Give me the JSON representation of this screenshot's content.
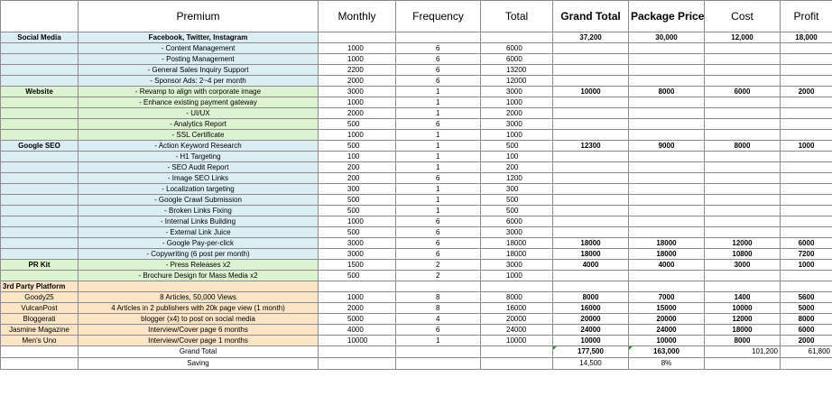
{
  "headers": [
    "",
    "Premium",
    "Monthly",
    "Frequency",
    "Total",
    "Grand Total",
    "Package Price",
    "Cost",
    "Profit"
  ],
  "rows": [
    {
      "cat": "Social Media",
      "item": "Facebook, Twitter, Instagram",
      "monthly": "",
      "freq": "",
      "total": "",
      "grand": "37,200",
      "pkg": "30,000",
      "cost": "12,000",
      "profit": "18,000",
      "color": "blue",
      "boldItem": true
    },
    {
      "cat": "",
      "item": "- Content Management",
      "monthly": "1000",
      "freq": "6",
      "total": "6000",
      "grand": "",
      "pkg": "",
      "cost": "",
      "profit": "",
      "color": "blue"
    },
    {
      "cat": "",
      "item": "- Posting Management",
      "monthly": "1000",
      "freq": "6",
      "total": "6000",
      "grand": "",
      "pkg": "",
      "cost": "",
      "profit": "",
      "color": "blue"
    },
    {
      "cat": "",
      "item": "- General Sales Inquiry Support",
      "monthly": "2200",
      "freq": "6",
      "total": "13200",
      "grand": "",
      "pkg": "",
      "cost": "",
      "profit": "",
      "color": "blue"
    },
    {
      "cat": "",
      "item": "- Sponsor Ads: 2~4 per month",
      "monthly": "2000",
      "freq": "6",
      "total": "12000",
      "grand": "",
      "pkg": "",
      "cost": "",
      "profit": "",
      "color": "blue"
    },
    {
      "cat": "Website",
      "item": "- Revamp to align with corporate image",
      "monthly": "3000",
      "freq": "1",
      "total": "3000",
      "grand": "10000",
      "pkg": "8000",
      "cost": "6000",
      "profit": "2000",
      "color": "green"
    },
    {
      "cat": "",
      "item": "- Enhance existing payment gateway",
      "monthly": "1000",
      "freq": "1",
      "total": "1000",
      "grand": "",
      "pkg": "",
      "cost": "",
      "profit": "",
      "color": "green"
    },
    {
      "cat": "",
      "item": "- UI/UX",
      "monthly": "2000",
      "freq": "1",
      "total": "2000",
      "grand": "",
      "pkg": "",
      "cost": "",
      "profit": "",
      "color": "green"
    },
    {
      "cat": "",
      "item": "- Analytics Report",
      "monthly": "500",
      "freq": "6",
      "total": "3000",
      "grand": "",
      "pkg": "",
      "cost": "",
      "profit": "",
      "color": "green"
    },
    {
      "cat": "",
      "item": "- SSL Certificate",
      "monthly": "1000",
      "freq": "1",
      "total": "1000",
      "grand": "",
      "pkg": "",
      "cost": "",
      "profit": "",
      "color": "green"
    },
    {
      "cat": "Google SEO",
      "item": "- Action Keyword Research",
      "monthly": "500",
      "freq": "1",
      "total": "500",
      "grand": "12300",
      "pkg": "9000",
      "cost": "8000",
      "profit": "1000",
      "color": "blue"
    },
    {
      "cat": "",
      "item": "- H1 Targeting",
      "monthly": "100",
      "freq": "1",
      "total": "100",
      "grand": "",
      "pkg": "",
      "cost": "",
      "profit": "",
      "color": "blue"
    },
    {
      "cat": "",
      "item": "- SEO Audit Report",
      "monthly": "200",
      "freq": "1",
      "total": "200",
      "grand": "",
      "pkg": "",
      "cost": "",
      "profit": "",
      "color": "blue"
    },
    {
      "cat": "",
      "item": "- Image SEO Links",
      "monthly": "200",
      "freq": "6",
      "total": "1200",
      "grand": "",
      "pkg": "",
      "cost": "",
      "profit": "",
      "color": "blue"
    },
    {
      "cat": "",
      "item": "- Localization targeting",
      "monthly": "300",
      "freq": "1",
      "total": "300",
      "grand": "",
      "pkg": "",
      "cost": "",
      "profit": "",
      "color": "blue"
    },
    {
      "cat": "",
      "item": "- Google Crawl Submission",
      "monthly": "500",
      "freq": "1",
      "total": "500",
      "grand": "",
      "pkg": "",
      "cost": "",
      "profit": "",
      "color": "blue"
    },
    {
      "cat": "",
      "item": "- Broken Links Fixing",
      "monthly": "500",
      "freq": "1",
      "total": "500",
      "grand": "",
      "pkg": "",
      "cost": "",
      "profit": "",
      "color": "blue"
    },
    {
      "cat": "",
      "item": "- Internal Links Building",
      "monthly": "1000",
      "freq": "6",
      "total": "6000",
      "grand": "",
      "pkg": "",
      "cost": "",
      "profit": "",
      "color": "blue"
    },
    {
      "cat": "",
      "item": "- External Link Juice",
      "monthly": "500",
      "freq": "6",
      "total": "3000",
      "grand": "",
      "pkg": "",
      "cost": "",
      "profit": "",
      "color": "blue"
    },
    {
      "cat": "",
      "item": "- Google Pay-per-click",
      "monthly": "3000",
      "freq": "6",
      "total": "18000",
      "grand": "18000",
      "pkg": "18000",
      "cost": "12000",
      "profit": "6000",
      "color": "blue"
    },
    {
      "cat": "",
      "item": "- Copywriting (6 post per month)",
      "monthly": "3000",
      "freq": "6",
      "total": "18000",
      "grand": "18000",
      "pkg": "18000",
      "cost": "10800",
      "profit": "7200",
      "color": "blue"
    },
    {
      "cat": "PR Kit",
      "item": "- Press Releases x2",
      "monthly": "1500",
      "freq": "2",
      "total": "3000",
      "grand": "4000",
      "pkg": "4000",
      "cost": "3000",
      "profit": "1000",
      "color": "green"
    },
    {
      "cat": "",
      "item": "- Brochure Design for Mass Media x2",
      "monthly": "500",
      "freq": "2",
      "total": "1000",
      "grand": "",
      "pkg": "",
      "cost": "",
      "profit": "",
      "color": "green"
    },
    {
      "cat": "3rd Party Platform",
      "item": "",
      "monthly": "",
      "freq": "",
      "total": "",
      "grand": "",
      "pkg": "",
      "cost": "",
      "profit": "",
      "color": "orange",
      "leftCat": true
    },
    {
      "cat": "Goody25",
      "item": "8 Articles, 50,000 Views",
      "monthly": "1000",
      "freq": "8",
      "total": "8000",
      "grand": "8000",
      "pkg": "7000",
      "cost": "1400",
      "profit": "5600",
      "color": "orange"
    },
    {
      "cat": "VulcanPost",
      "item": "4 Articles in 2 publishers with 20k page view (1 month)",
      "monthly": "2000",
      "freq": "8",
      "total": "16000",
      "grand": "16000",
      "pkg": "15000",
      "cost": "10000",
      "profit": "5000",
      "color": "orange"
    },
    {
      "cat": "Bloggerati",
      "item": "blogger (x4) to post on social media",
      "monthly": "5000",
      "freq": "4",
      "total": "20000",
      "grand": "20000",
      "pkg": "20000",
      "cost": "12000",
      "profit": "8000",
      "color": "orange"
    },
    {
      "cat": "Jasmine Magazine",
      "item": "Interview/Cover page 6 months",
      "monthly": "4000",
      "freq": "6",
      "total": "24000",
      "grand": "24000",
      "pkg": "24000",
      "cost": "18000",
      "profit": "6000",
      "color": "orange"
    },
    {
      "cat": "Men's Uno",
      "item": "Interview/Cover page 1 months",
      "monthly": "10000",
      "freq": "1",
      "total": "10000",
      "grand": "10000",
      "pkg": "10000",
      "cost": "8000",
      "profit": "2000",
      "color": "orange"
    }
  ],
  "summary": {
    "grand_total_label": "Grand Total",
    "saving_label": "Saving",
    "grand_total": "177,500",
    "package_total": "163,000",
    "cost_total": "101,200",
    "profit_total": "61,800",
    "saving_amount": "14,500",
    "saving_percent": "8%"
  }
}
